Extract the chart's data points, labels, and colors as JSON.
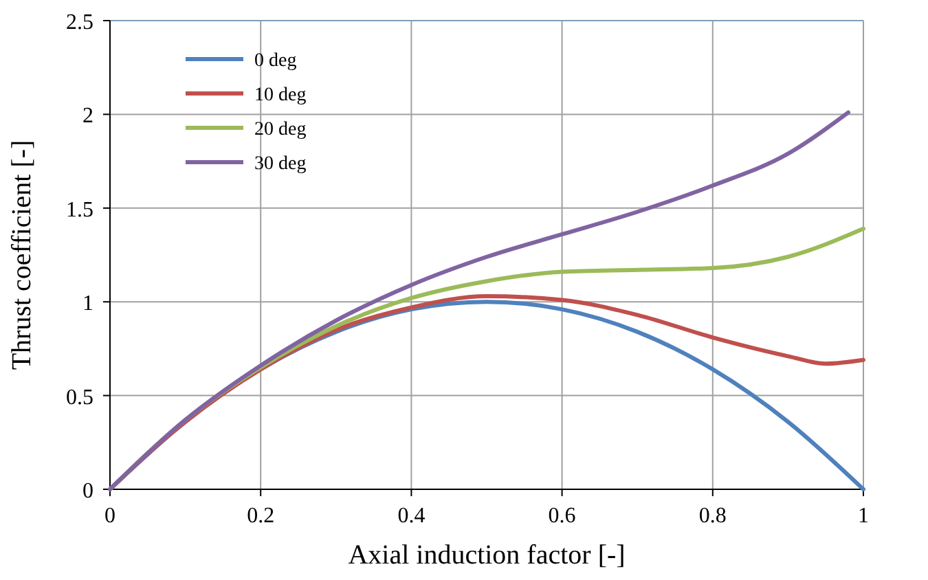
{
  "chart_data": {
    "type": "line",
    "xlabel": "Axial induction factor [-]",
    "ylabel": "Thrust coefficient [-]",
    "xlim": [
      0,
      1
    ],
    "xticks": [
      0,
      0.2,
      0.4,
      0.6,
      0.8,
      1
    ],
    "ylim": [
      0,
      2.5
    ],
    "yticks": [
      0,
      0.5,
      1,
      1.5,
      2,
      2.5
    ],
    "grid": true,
    "legend": "top left",
    "marker": "none",
    "line_style": "solid",
    "series": [
      {
        "name": "0 deg",
        "color": "#4f81bd",
        "x": [
          0,
          0.1,
          0.2,
          0.3,
          0.4,
          0.5,
          0.6,
          0.7,
          0.8,
          0.9,
          1
        ],
        "values": [
          0,
          0.36,
          0.64,
          0.84,
          0.96,
          1.0,
          0.96,
          0.84,
          0.64,
          0.36,
          0
        ]
      },
      {
        "name": "10 deg",
        "color": "#c0504d",
        "x": [
          0,
          0.1,
          0.2,
          0.3,
          0.4,
          0.5,
          0.6,
          0.7,
          0.8,
          0.9,
          0.95,
          1
        ],
        "values": [
          0,
          0.36,
          0.64,
          0.85,
          0.97,
          1.03,
          1.01,
          0.93,
          0.81,
          0.71,
          0.67,
          0.69
        ]
      },
      {
        "name": "20 deg",
        "color": "#9bbb59",
        "x": [
          0,
          0.1,
          0.2,
          0.3,
          0.4,
          0.5,
          0.6,
          0.7,
          0.8,
          0.9,
          1
        ],
        "values": [
          0,
          0.37,
          0.65,
          0.87,
          1.02,
          1.11,
          1.16,
          1.17,
          1.18,
          1.24,
          1.39
        ]
      },
      {
        "name": "30 deg",
        "color": "#8064a2",
        "x": [
          0,
          0.1,
          0.2,
          0.3,
          0.4,
          0.5,
          0.6,
          0.7,
          0.8,
          0.9,
          0.98
        ],
        "values": [
          0,
          0.37,
          0.66,
          0.9,
          1.09,
          1.24,
          1.36,
          1.48,
          1.62,
          1.79,
          2.01
        ]
      }
    ]
  }
}
